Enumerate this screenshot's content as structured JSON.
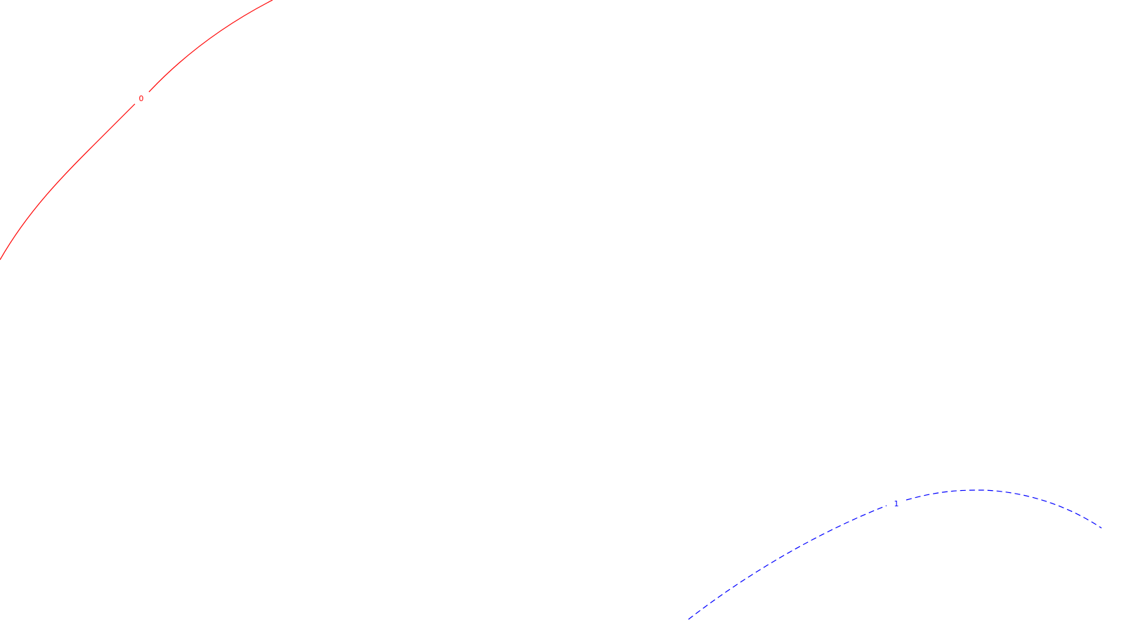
{
  "chart_data": {
    "type": "contour",
    "title": "",
    "xlabel": "",
    "ylabel": "",
    "grid": false,
    "legend": "none",
    "contours": [
      {
        "level": "0",
        "color": "#ff0000",
        "dashed": false
      },
      {
        "level": "1",
        "color": "#0000ff",
        "dashed": true
      }
    ]
  }
}
